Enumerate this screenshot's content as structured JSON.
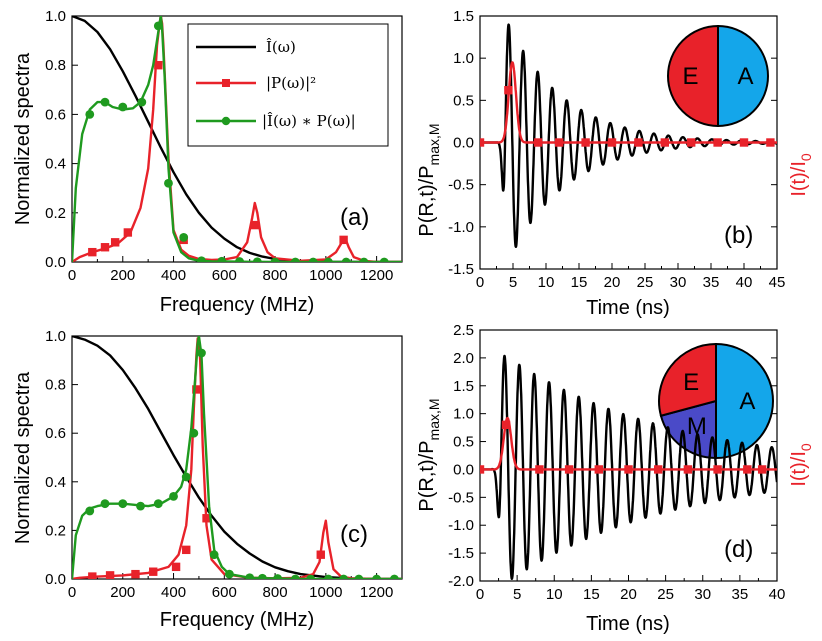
{
  "colors": {
    "black": "#000000",
    "red": "#e8222a",
    "green": "#1f9a1f",
    "pie_E": "#e8222a",
    "pie_A": "#14a6ea",
    "pie_M": "#4a4ac8"
  },
  "chart_data": [
    {
      "panel": "a",
      "type": "line",
      "panel_label": "(a)",
      "xlabel": "Frequency (MHz)",
      "ylabel": "Normalized spectra",
      "xlim": [
        0,
        1300
      ],
      "ylim": [
        0,
        1.0
      ],
      "xticks": [
        "0",
        "200",
        "400",
        "600",
        "800",
        "1000",
        "1200"
      ],
      "yticks": [
        "0.0",
        "0.2",
        "0.4",
        "0.6",
        "0.8",
        "1.0"
      ],
      "legend": [
        "Î(ω)",
        "|P(ω)|²",
        "|Î(ω) ∗ P(ω)|"
      ],
      "series": [
        {
          "name": "I(w)",
          "color": "#000000",
          "marker": "none",
          "x": [
            0,
            50,
            100,
            150,
            200,
            250,
            300,
            350,
            400,
            450,
            500,
            550,
            600,
            650,
            700,
            750,
            800,
            900,
            1000,
            1100,
            1200,
            1300
          ],
          "y": [
            1.0,
            0.98,
            0.935,
            0.865,
            0.775,
            0.675,
            0.57,
            0.465,
            0.365,
            0.275,
            0.2,
            0.14,
            0.095,
            0.06,
            0.037,
            0.022,
            0.012,
            0.004,
            0.001,
            0,
            0,
            0
          ]
        },
        {
          "name": "|P(w)|^2",
          "color": "#e8222a",
          "marker": "square",
          "x": [
            0,
            30,
            80,
            130,
            180,
            230,
            270,
            300,
            320,
            335,
            345,
            350,
            355,
            360,
            368,
            380,
            400,
            430,
            460,
            500,
            550,
            600,
            650,
            690,
            710,
            720,
            730,
            745,
            770,
            800,
            900,
            1000,
            1040,
            1060,
            1075,
            1090,
            1110,
            1150,
            1200,
            1300
          ],
          "y": [
            0,
            0.02,
            0.04,
            0.055,
            0.075,
            0.12,
            0.22,
            0.38,
            0.62,
            0.88,
            0.97,
            1.0,
            0.97,
            0.88,
            0.7,
            0.42,
            0.13,
            0.05,
            0.025,
            0.012,
            0.008,
            0.01,
            0.02,
            0.08,
            0.18,
            0.24,
            0.2,
            0.1,
            0.04,
            0.015,
            0.005,
            0.01,
            0.04,
            0.075,
            0.1,
            0.06,
            0.02,
            0.005,
            0,
            0
          ],
          "markers_x": [
            80,
            130,
            170,
            220,
            340,
            440,
            720,
            1070
          ],
          "markers_y": [
            0.04,
            0.06,
            0.08,
            0.12,
            0.8,
            0.09,
            0.15,
            0.09
          ]
        },
        {
          "name": "|I*P|",
          "color": "#1f9a1f",
          "marker": "circle",
          "x": [
            0,
            15,
            40,
            70,
            100,
            130,
            160,
            200,
            240,
            270,
            300,
            320,
            335,
            345,
            350,
            355,
            365,
            380,
            400,
            430,
            460,
            500,
            550,
            600,
            700,
            800,
            900,
            1000,
            1100,
            1200,
            1300
          ],
          "y": [
            0,
            0.3,
            0.52,
            0.62,
            0.65,
            0.65,
            0.63,
            0.62,
            0.625,
            0.65,
            0.72,
            0.8,
            0.9,
            0.97,
            1.0,
            0.95,
            0.75,
            0.38,
            0.12,
            0.04,
            0.015,
            0.005,
            0.003,
            0.002,
            0.001,
            0,
            0,
            0,
            0,
            0,
            0
          ],
          "markers_x": [
            70,
            130,
            200,
            275,
            340,
            380,
            440,
            510,
            590,
            660,
            730,
            800,
            880,
            950,
            1010,
            1080,
            1150,
            1230
          ],
          "markers_y": [
            0.6,
            0.65,
            0.63,
            0.65,
            0.96,
            0.32,
            0.1,
            0.005,
            0.003,
            0.002,
            0.001,
            0,
            0,
            0,
            0,
            0,
            0,
            0
          ]
        }
      ]
    },
    {
      "panel": "b",
      "type": "line",
      "panel_label": "(b)",
      "xlabel": "Time (ns)",
      "ylabel": "P(R,t)/P",
      "ylabel_sub": "max,M",
      "right_label": "I(t)/I",
      "right_label_sub": "0",
      "xlim": [
        0,
        45
      ],
      "ylim": [
        -1.5,
        1.5
      ],
      "xticks": [
        "0",
        "5",
        "10",
        "15",
        "20",
        "25",
        "30",
        "35",
        "40",
        "45"
      ],
      "yticks": [
        "-1.5",
        "-1.0",
        "-0.5",
        "0.0",
        "0.5",
        "1.0",
        "1.5"
      ],
      "pie": [
        {
          "label": "E",
          "start": 180,
          "end": 360,
          "color": "#e8222a"
        },
        {
          "label": "A",
          "start": 0,
          "end": 180,
          "color": "#14a6ea"
        }
      ],
      "series": [
        {
          "name": "P(R,t)",
          "color": "#000000",
          "marker": "none",
          "signal": {
            "type": "damped",
            "t0": 3.8,
            "period": 2.2,
            "decay": 8.5,
            "amp": 1.5
          }
        },
        {
          "name": "I(t)",
          "color": "#e8222a",
          "marker": "square",
          "signal": {
            "type": "gauss",
            "t0": 4.9,
            "sigma": 0.55,
            "amp": 0.95
          },
          "markers_x": [
            0,
            4.3,
            8.8,
            12,
            16,
            20,
            24,
            28,
            32,
            36,
            40,
            44
          ],
          "markers_y": [
            0,
            0.62,
            0,
            0,
            0,
            0,
            0,
            0,
            0,
            0,
            0,
            0
          ]
        }
      ]
    },
    {
      "panel": "c",
      "type": "line",
      "panel_label": "(c)",
      "xlabel": "Frequency (MHz)",
      "ylabel": "Normalized spectra",
      "xlim": [
        0,
        1300
      ],
      "ylim": [
        0,
        1.0
      ],
      "xticks": [
        "0",
        "200",
        "400",
        "600",
        "800",
        "1000",
        "1200"
      ],
      "yticks": [
        "0.0",
        "0.2",
        "0.4",
        "0.6",
        "0.8",
        "1.0"
      ],
      "series": [
        {
          "name": "I(w)",
          "color": "#000000",
          "marker": "none",
          "x": [
            0,
            50,
            100,
            150,
            200,
            250,
            300,
            350,
            400,
            450,
            500,
            550,
            600,
            650,
            700,
            750,
            800,
            850,
            900,
            1000,
            1100,
            1200,
            1300
          ],
          "y": [
            1.0,
            0.985,
            0.96,
            0.92,
            0.86,
            0.785,
            0.7,
            0.605,
            0.51,
            0.42,
            0.335,
            0.26,
            0.195,
            0.145,
            0.105,
            0.072,
            0.048,
            0.032,
            0.02,
            0.008,
            0.002,
            0,
            0
          ]
        },
        {
          "name": "|P(w)|^2",
          "color": "#e8222a",
          "marker": "square",
          "x": [
            0,
            30,
            100,
            200,
            300,
            380,
            420,
            450,
            470,
            480,
            490,
            495,
            500,
            505,
            515,
            530,
            550,
            600,
            700,
            800,
            900,
            950,
            975,
            990,
            1000,
            1010,
            1030,
            1060,
            1100,
            1200,
            1300
          ],
          "y": [
            0,
            0.005,
            0.01,
            0.015,
            0.025,
            0.05,
            0.1,
            0.22,
            0.45,
            0.7,
            0.92,
            0.99,
            0.98,
            0.9,
            0.55,
            0.22,
            0.08,
            0.02,
            0.005,
            0.003,
            0.005,
            0.02,
            0.07,
            0.19,
            0.24,
            0.15,
            0.04,
            0.01,
            0.003,
            0,
            0
          ],
          "markers_x": [
            80,
            150,
            250,
            320,
            410,
            450,
            490,
            530,
            980
          ],
          "markers_y": [
            0.01,
            0.015,
            0.02,
            0.03,
            0.05,
            0.12,
            0.78,
            0.25,
            0.1
          ]
        },
        {
          "name": "|I*P|",
          "color": "#1f9a1f",
          "marker": "circle",
          "x": [
            0,
            15,
            40,
            70,
            100,
            150,
            200,
            250,
            300,
            350,
            400,
            430,
            450,
            470,
            485,
            495,
            500,
            510,
            520,
            540,
            560,
            590,
            620,
            700,
            800,
            900,
            1000,
            1100,
            1200,
            1300
          ],
          "y": [
            0,
            0.18,
            0.26,
            0.29,
            0.3,
            0.31,
            0.31,
            0.305,
            0.3,
            0.31,
            0.34,
            0.38,
            0.45,
            0.62,
            0.82,
            0.97,
            1.0,
            0.92,
            0.68,
            0.3,
            0.12,
            0.05,
            0.02,
            0.005,
            0.002,
            0,
            0,
            0,
            0,
            0
          ],
          "markers_x": [
            70,
            130,
            200,
            270,
            340,
            400,
            450,
            480,
            510,
            560,
            620,
            700,
            750,
            810,
            880,
            940,
            1010,
            1070,
            1130,
            1200,
            1270
          ],
          "markers_y": [
            0.28,
            0.31,
            0.31,
            0.3,
            0.31,
            0.34,
            0.42,
            0.6,
            0.93,
            0.1,
            0.02,
            0.005,
            0.003,
            0.002,
            0,
            0,
            0,
            0,
            0,
            0,
            0
          ]
        }
      ]
    },
    {
      "panel": "d",
      "type": "line",
      "panel_label": "(d)",
      "xlabel": "Time (ns)",
      "ylabel": "P(R,t)/P",
      "ylabel_sub": "max,M",
      "right_label": "I(t)/I",
      "right_label_sub": "0",
      "xlim": [
        0,
        40
      ],
      "ylim": [
        -2.0,
        2.5
      ],
      "xticks": [
        "0",
        "5",
        "10",
        "15",
        "20",
        "25",
        "30",
        "35",
        "40"
      ],
      "yticks": [
        "-2.0",
        "-1.5",
        "-1.0",
        "-0.5",
        "0.0",
        "0.5",
        "1.0",
        "1.5",
        "2.0",
        "2.5"
      ],
      "pie": [
        {
          "label": "A",
          "start": 0,
          "end": 180,
          "color": "#14a6ea"
        },
        {
          "label": "M",
          "start": 180,
          "end": 255,
          "color": "#4a4ac8"
        },
        {
          "label": "E",
          "start": 255,
          "end": 360,
          "color": "#e8222a"
        }
      ],
      "series": [
        {
          "name": "P(R,t)",
          "color": "#000000",
          "marker": "none",
          "signal": {
            "type": "damped",
            "t0": 2.8,
            "period": 2.0,
            "decay": 22,
            "amp": 2.1
          }
        },
        {
          "name": "I(t)",
          "color": "#e8222a",
          "marker": "square",
          "signal": {
            "type": "gauss",
            "t0": 3.7,
            "sigma": 0.5,
            "amp": 0.92
          },
          "markers_x": [
            0,
            3.5,
            8,
            12,
            16,
            20,
            24,
            28,
            32,
            36,
            38
          ],
          "markers_y": [
            0,
            0.8,
            0,
            0,
            0,
            0,
            0,
            0,
            0,
            0,
            0
          ]
        }
      ]
    }
  ]
}
